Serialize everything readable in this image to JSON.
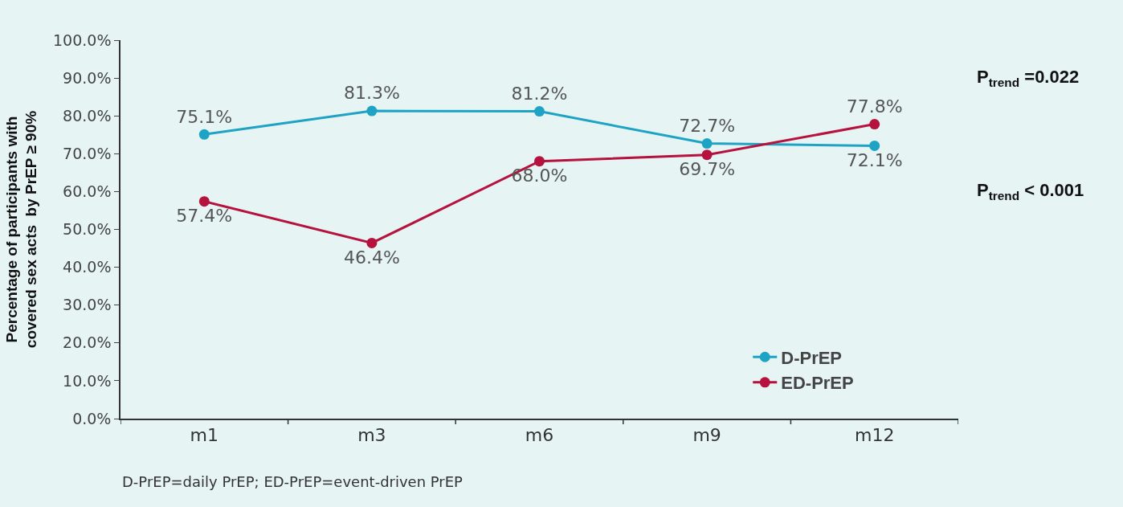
{
  "chart_data": {
    "type": "line",
    "ylabel": "Percentage of participants with covered sex acts  by PrEP ≥ 90%",
    "categories": [
      "m1",
      "m3",
      "m6",
      "m9",
      "m12"
    ],
    "series": [
      {
        "name": "D-PrEP",
        "color": "#1fa3c4",
        "values": [
          75.1,
          81.3,
          81.2,
          72.7,
          72.1
        ],
        "value_labels": [
          "75.1%",
          "81.3%",
          "81.2%",
          "72.7%",
          "72.1%"
        ]
      },
      {
        "name": "ED-PrEP",
        "color": "#b5123e",
        "values": [
          57.4,
          46.4,
          68.0,
          69.7,
          77.8
        ],
        "value_labels": [
          "57.4%",
          "46.4%",
          "68.0%",
          "69.7%",
          "77.8%"
        ]
      }
    ],
    "ylim": [
      0,
      100
    ],
    "yticks": [
      {
        "value": 0,
        "label": "0.0%"
      },
      {
        "value": 10,
        "label": "10.0%"
      },
      {
        "value": 20,
        "label": "20.0%"
      },
      {
        "value": 30,
        "label": "30.0%"
      },
      {
        "value": 40,
        "label": "40.0%"
      },
      {
        "value": 50,
        "label": "50.0%"
      },
      {
        "value": 60,
        "label": "60.0%"
      },
      {
        "value": 70,
        "label": "70.0%"
      },
      {
        "value": 80,
        "label": "80.0%"
      },
      {
        "value": 90,
        "label": "90.0%"
      },
      {
        "value": 100,
        "label": "100.0%"
      }
    ],
    "annotations": [
      "P$_{trend}$ =0.022",
      "P$_{trend}$ < 0.001",
      "D-PrEP=daily PrEP; ED-PrEP=event-driven PrEP"
    ],
    "grid": false,
    "legend": "bottom right",
    "marker": "circle",
    "line_style": "solid"
  }
}
